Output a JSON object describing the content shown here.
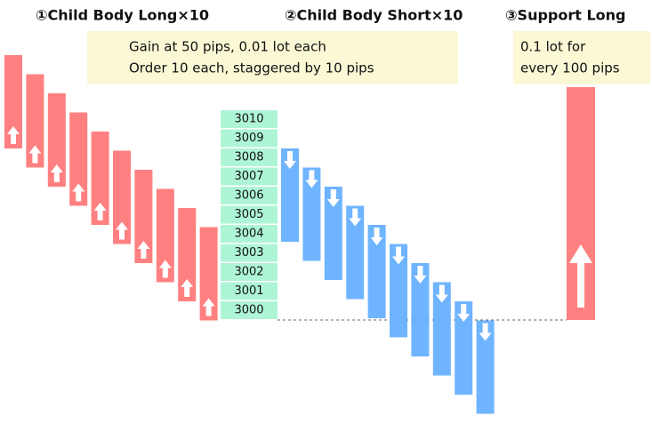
{
  "headings": [
    "①Child Body Long×10",
    "②Child Body Short×10",
    "③Support Long"
  ],
  "note_left": {
    "lines": [
      "Gain at 50 pips, 0.01 lot each",
      "Order 10 each, staggered by 10 pips"
    ]
  },
  "note_right": {
    "lines": [
      "0.1 lot for",
      "every 100 pips"
    ]
  },
  "price_levels": [
    3010,
    3009,
    3008,
    3007,
    3006,
    3005,
    3004,
    3003,
    3002,
    3001,
    3000
  ]
}
